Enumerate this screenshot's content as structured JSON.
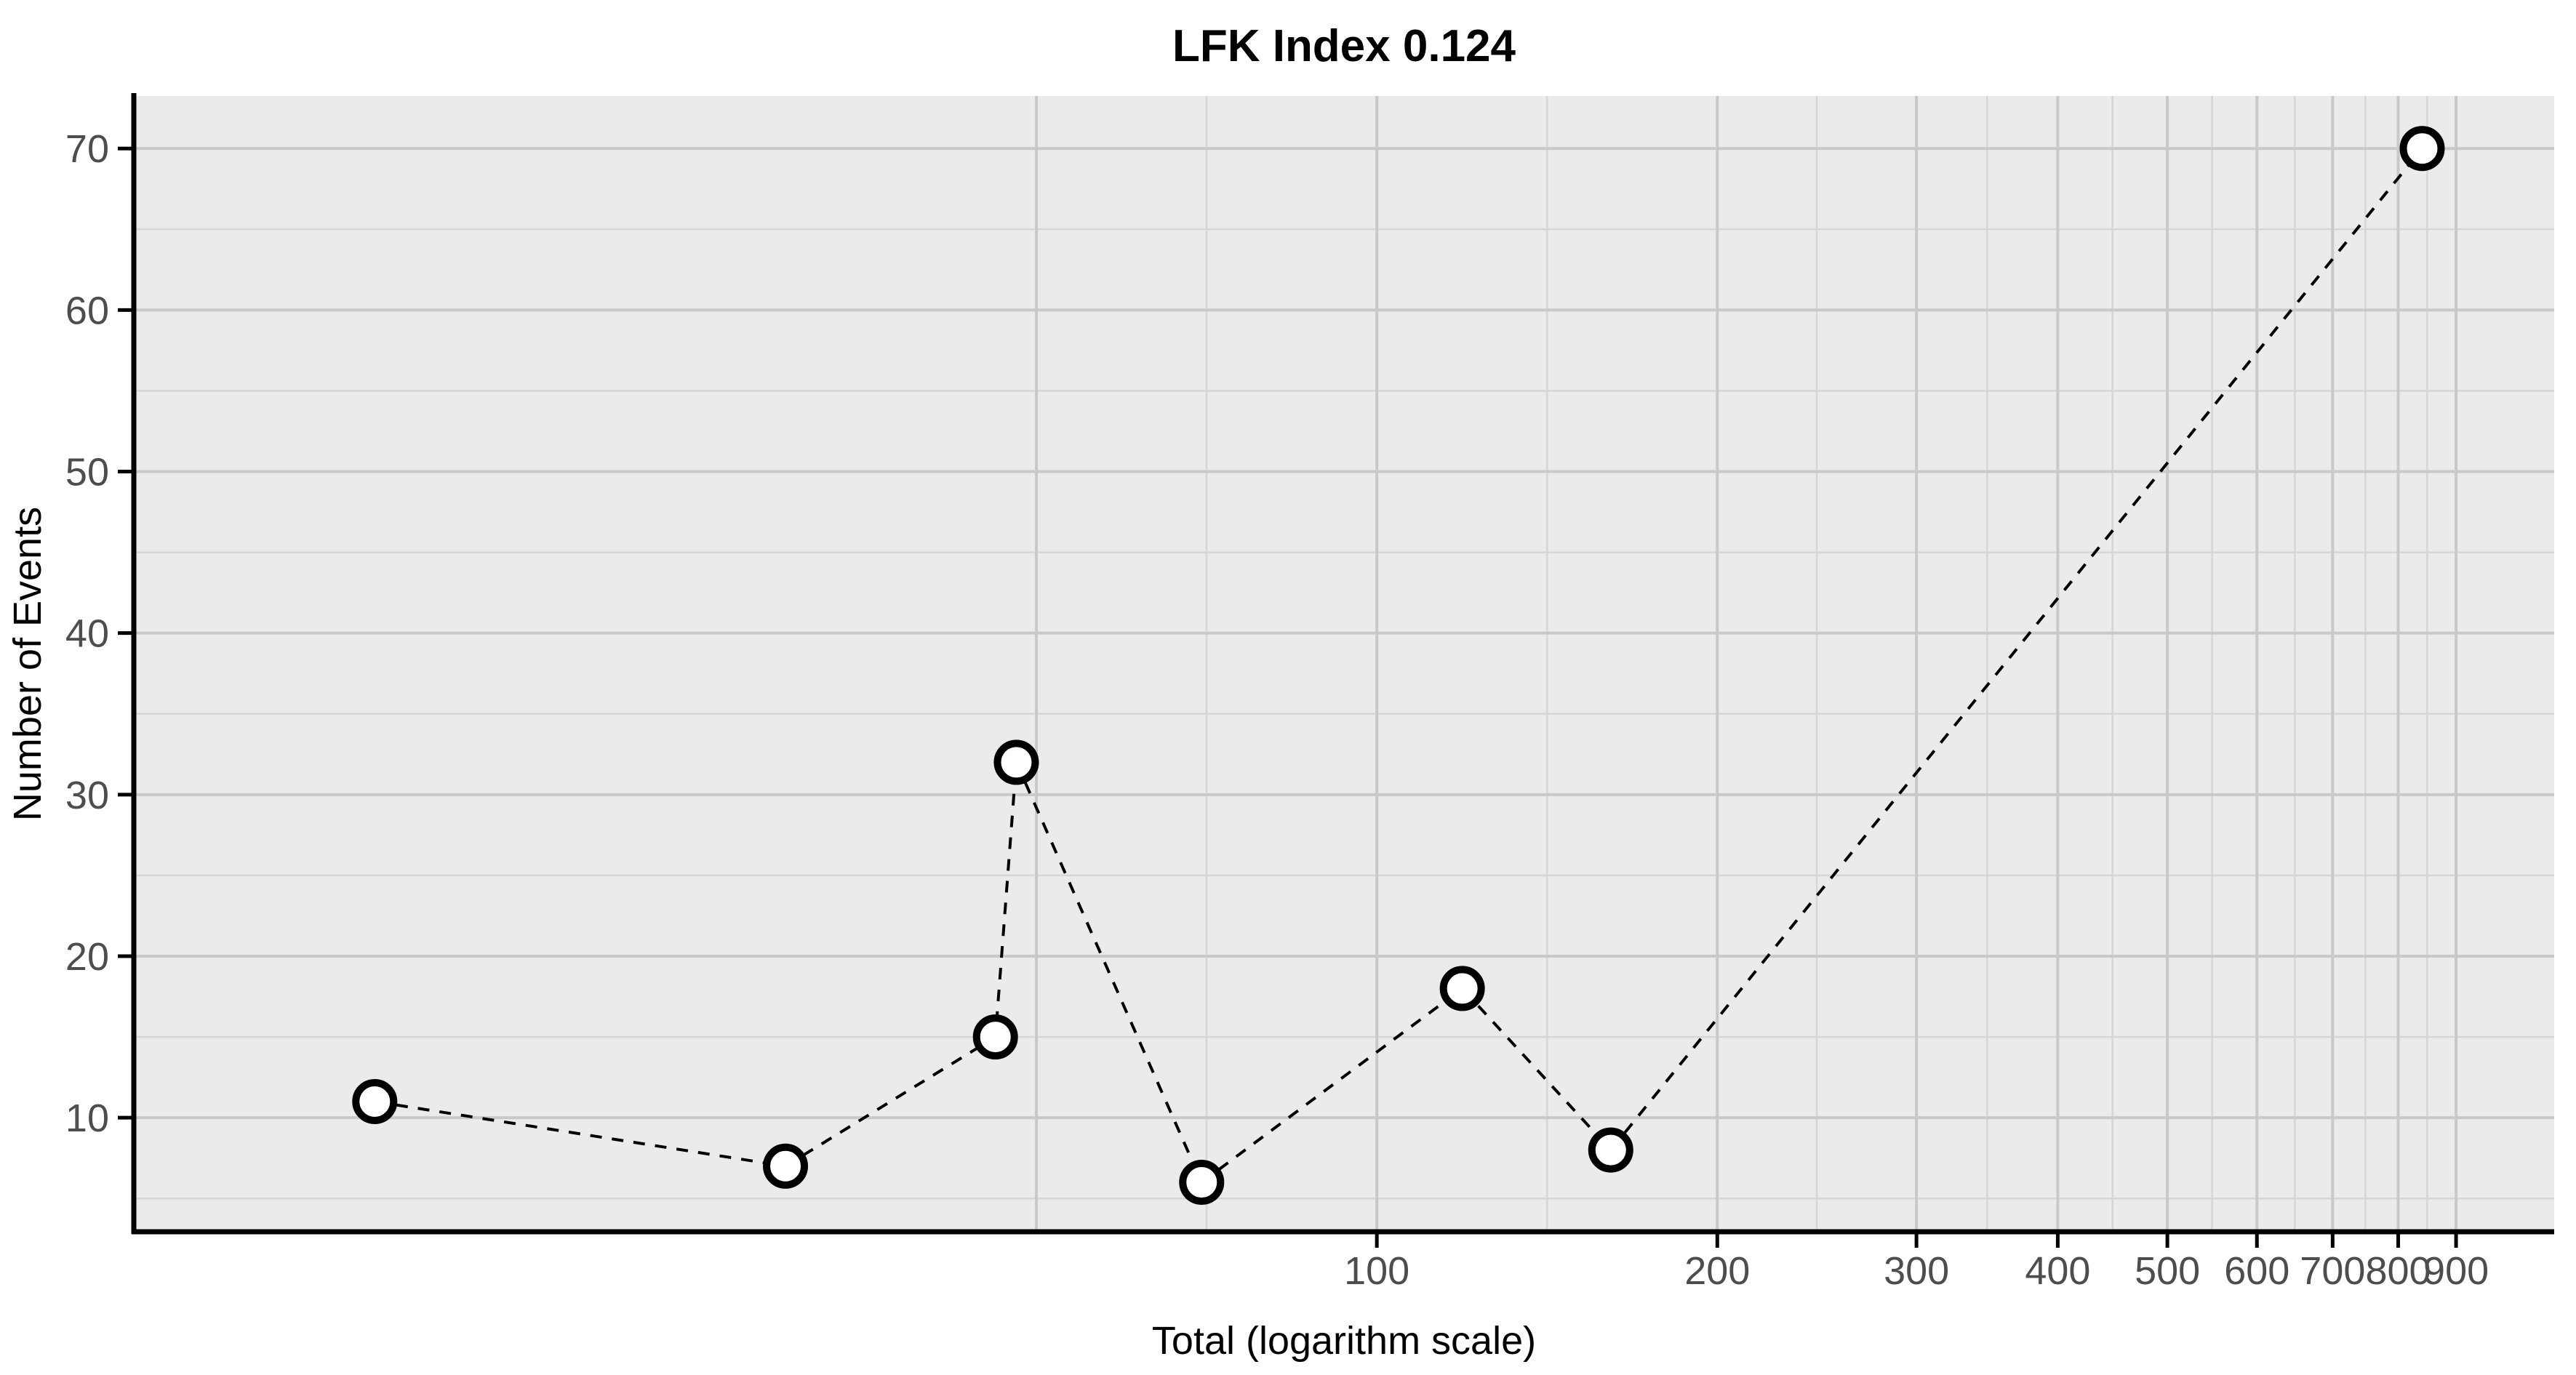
{
  "chart_data": {
    "type": "line",
    "title": "LFK Index 0.124",
    "xlabel": "Total (logarithm scale)",
    "ylabel": "Number of Events",
    "x_scale": "log10",
    "y_scale": "linear",
    "x_range": [
      7.96,
      1099
    ],
    "y_range": [
      2.94,
      73.25
    ],
    "x_ticks": [
      100,
      200,
      300,
      400,
      500,
      600,
      700,
      800,
      900
    ],
    "y_ticks": [
      10,
      20,
      30,
      40,
      50,
      60,
      70
    ],
    "x_grid_major": [
      50,
      100,
      200,
      300,
      400,
      500,
      600,
      700,
      800,
      900
    ],
    "x_grid_minor": [
      70.7,
      141.4,
      244.9,
      346.4,
      447.2,
      547.7,
      648.1,
      748.3,
      848.5
    ],
    "y_grid_major": [
      10,
      20,
      30,
      40,
      50,
      60,
      70
    ],
    "y_grid_minor": [
      5,
      15,
      25,
      35,
      45,
      55,
      65
    ],
    "grid": true,
    "legend_position": "none",
    "line_style": "dashed",
    "marker": "open-circle",
    "points": [
      {
        "x": 13,
        "y": 11
      },
      {
        "x": 30,
        "y": 7
      },
      {
        "x": 46,
        "y": 15
      },
      {
        "x": 48,
        "y": 32
      },
      {
        "x": 70,
        "y": 6
      },
      {
        "x": 119,
        "y": 18
      },
      {
        "x": 161,
        "y": 8
      },
      {
        "x": 840,
        "y": 70
      }
    ],
    "colors": {
      "panel_bg": "#ebebeb",
      "grid_major": "#c9c9c9",
      "grid_minor": "#d6d6d6",
      "axis_line": "#000000",
      "tick_mark": "#000000",
      "tick_label": "#4d4d4d",
      "series_line": "#000000",
      "marker_fill": "#ffffff",
      "marker_stroke": "#000000",
      "title": "#000000"
    }
  }
}
